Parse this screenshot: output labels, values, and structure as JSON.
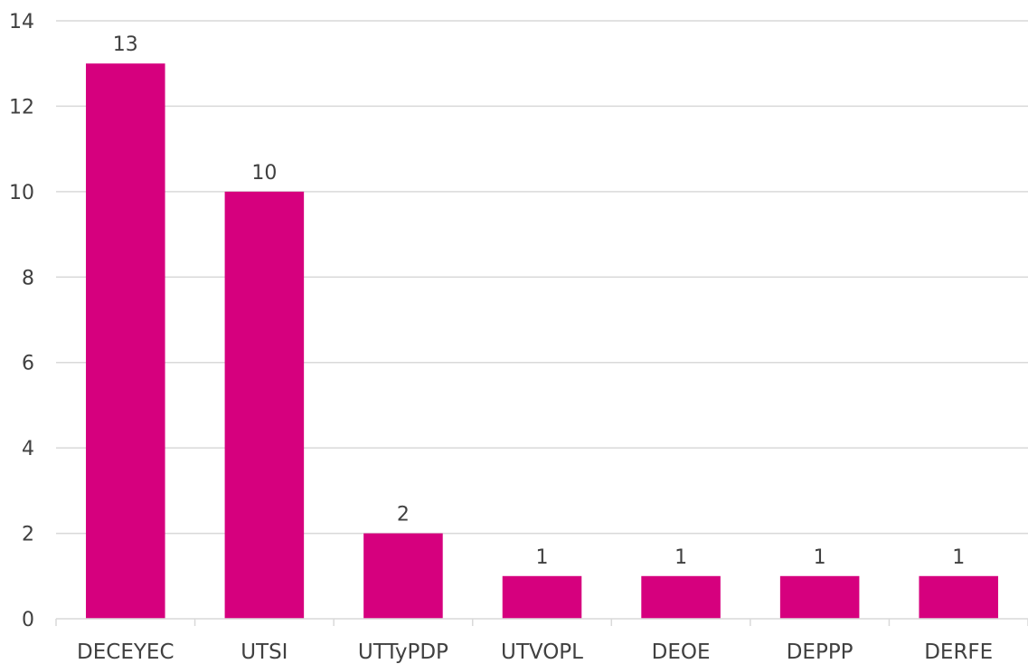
{
  "chart_data": {
    "type": "bar",
    "categories": [
      "DECEYEC",
      "UTSI",
      "UTTyPDP",
      "UTVOPL",
      "DEOE",
      "DEPPP",
      "DERFE"
    ],
    "values": [
      13,
      10,
      2,
      1,
      1,
      1,
      1
    ],
    "ylim": [
      0,
      14
    ],
    "yticks": [
      0,
      2,
      4,
      6,
      8,
      10,
      12,
      14
    ],
    "grid": true,
    "data_labels": true,
    "colors": {
      "bar": "#d6007e",
      "grid": "#d9d9d9",
      "text": "#404040"
    }
  }
}
